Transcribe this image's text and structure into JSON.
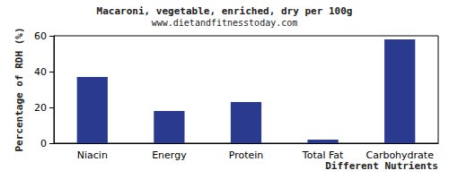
{
  "chart_data": {
    "type": "bar",
    "title": "Macaroni, vegetable, enriched, dry per 100g",
    "subtitle": "www.dietandfitnesstoday.com",
    "xlabel": "Different Nutrients",
    "ylabel": "Percentage of RDH (%)",
    "categories": [
      "Niacin",
      "Energy",
      "Protein",
      "Total Fat",
      "Carbohydrate"
    ],
    "values": [
      37,
      18,
      23,
      2,
      58
    ],
    "color": "#2a3b8f",
    "ylim": [
      0,
      60
    ],
    "yticks": [
      0,
      20,
      40,
      60
    ],
    "grid": false
  }
}
